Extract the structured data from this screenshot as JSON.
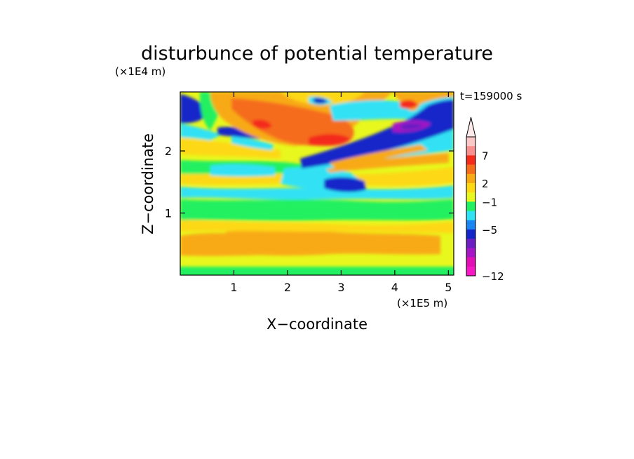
{
  "chart_data": {
    "type": "heatmap",
    "title": "disturbunce of potential temperature",
    "time_label": "t=159000 s",
    "xlabel": "X−coordinate",
    "ylabel": "Z−coordinate",
    "x_scale_label": "(×1E5 m)",
    "y_scale_label": "(×1E4 m)",
    "xlim": [
      0,
      5.1
    ],
    "ylim": [
      0,
      2.95
    ],
    "x_ticks": [
      {
        "value": 1,
        "label": "1"
      },
      {
        "value": 2,
        "label": "2"
      },
      {
        "value": 3,
        "label": "3"
      },
      {
        "value": 4,
        "label": "4"
      },
      {
        "value": 5,
        "label": "5"
      }
    ],
    "y_ticks": [
      {
        "value": 1,
        "label": "1"
      },
      {
        "value": 2,
        "label": "2"
      }
    ],
    "colorbar": {
      "levels_printed": [
        {
          "value": 7,
          "label": "7"
        },
        {
          "value": 2,
          "label": "2"
        },
        {
          "value": -1,
          "label": "−1"
        },
        {
          "value": -5,
          "label": "−5"
        },
        {
          "value": -12,
          "label": "−12"
        }
      ],
      "colors_top_to_bottom": [
        "#fbc8c8",
        "#f89090",
        "#f42a1b",
        "#f56d1a",
        "#f8aa14",
        "#fdd815",
        "#e8f71d",
        "#20f061",
        "#31e2f4",
        "#1a86f3",
        "#1327c9",
        "#6b1ec2",
        "#a517c5",
        "#e10fb4",
        "#f817c5"
      ],
      "arrow_color": "#fdeaea"
    }
  }
}
